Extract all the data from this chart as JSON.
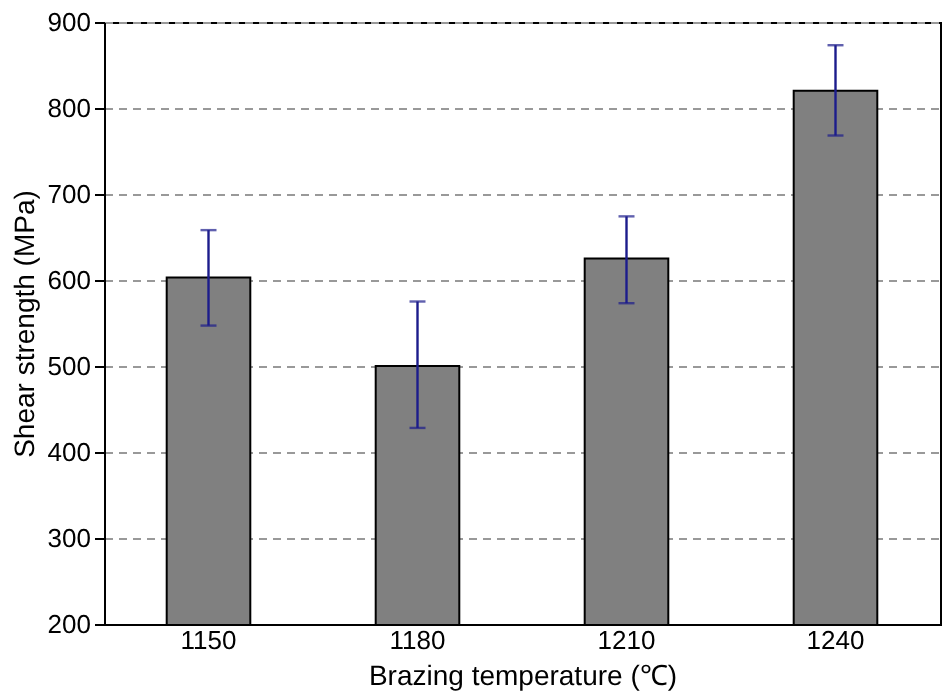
{
  "chart_data": {
    "type": "bar",
    "xlabel": "Brazing temperature (℃)",
    "ylabel": "Shear strength (MPa)",
    "categories": [
      "1150",
      "1180",
      "1210",
      "1240"
    ],
    "values": [
      603,
      500,
      625,
      820
    ],
    "errors": [
      [
        547,
        658
      ],
      [
        428,
        575
      ],
      [
        573,
        674
      ],
      [
        768,
        873
      ]
    ],
    "color": "#808080",
    "ylim": [
      200,
      900
    ],
    "yticks": [
      200,
      300,
      400,
      500,
      600,
      700,
      800,
      900
    ],
    "grid": "y"
  }
}
